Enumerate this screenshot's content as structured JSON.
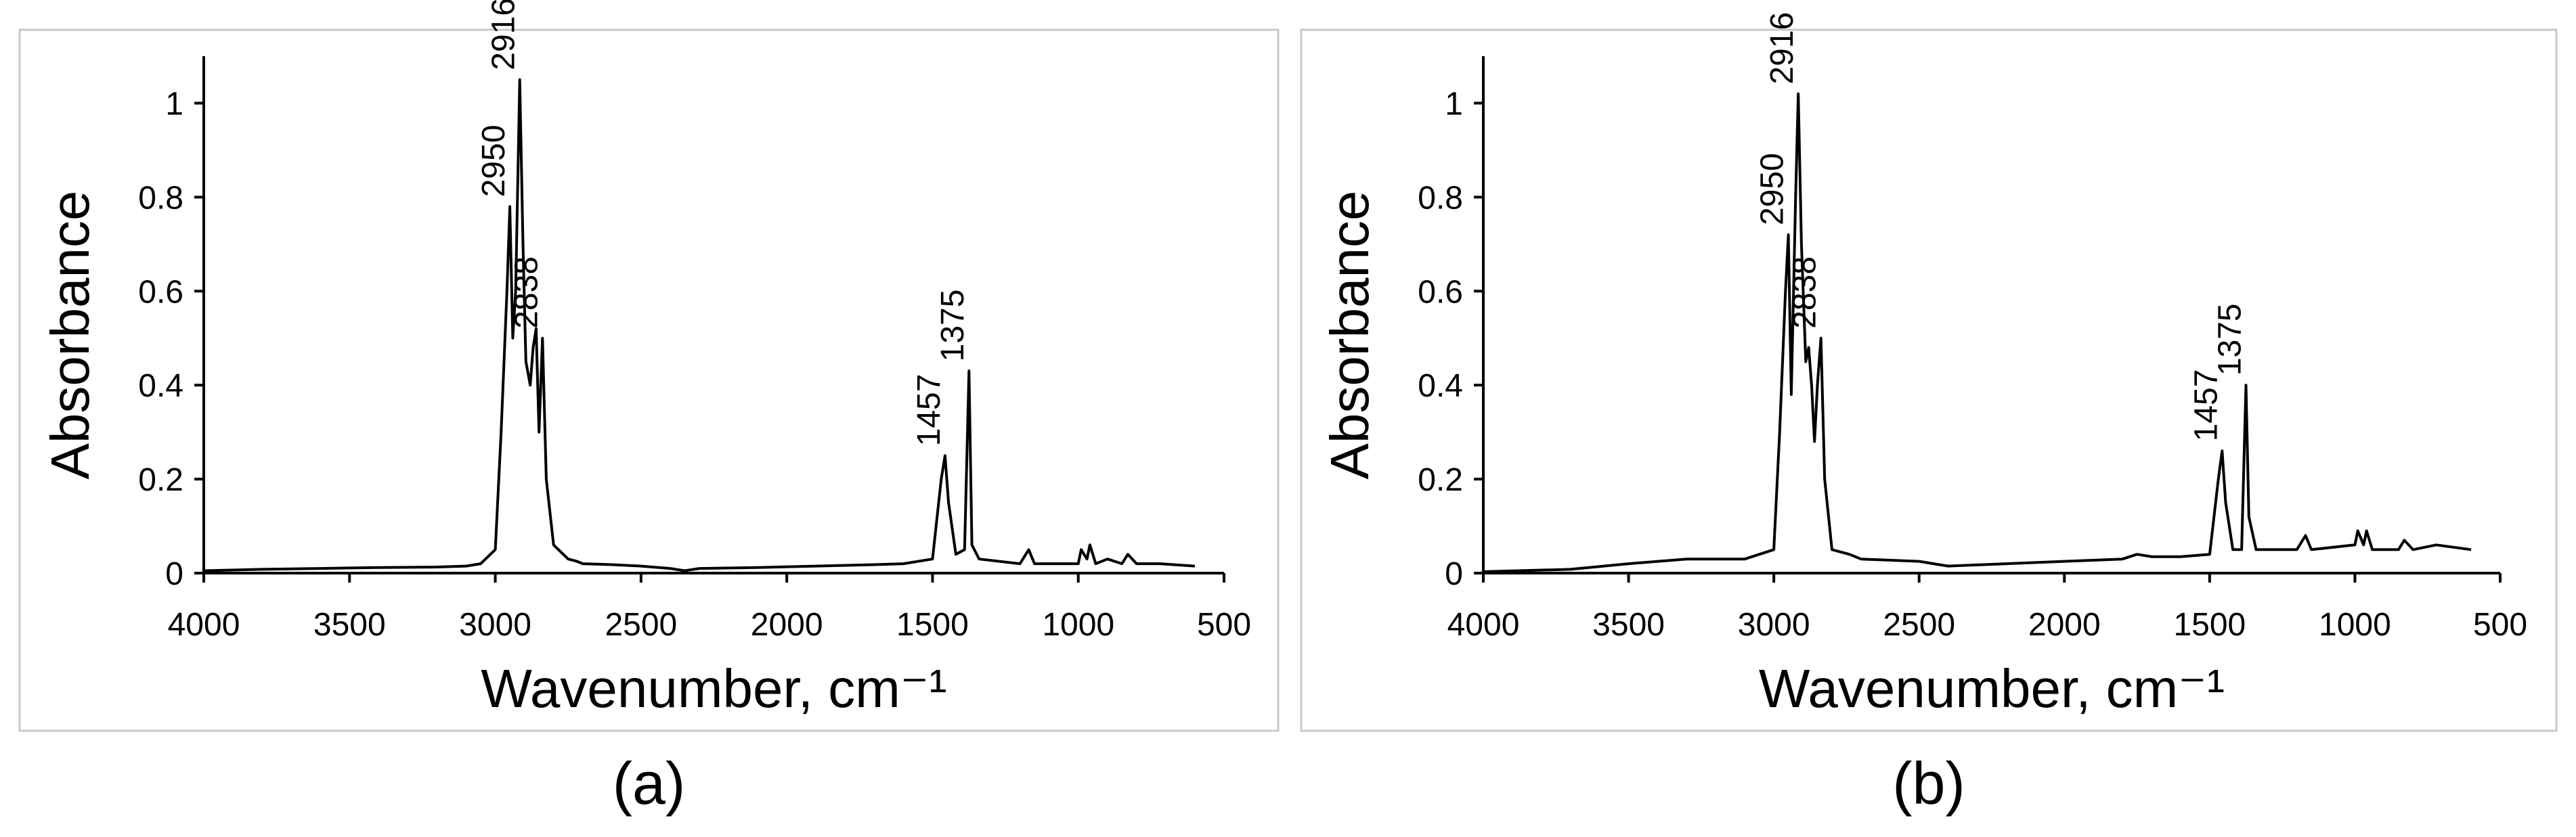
{
  "chart_data": [
    {
      "type": "line",
      "label": "(a)",
      "x_label": "Wavenumber, cm⁻¹",
      "y_label": "Absorbance",
      "xlim": [
        4000,
        500
      ],
      "xticks": [
        4000,
        3500,
        3000,
        2500,
        2000,
        1500,
        1000,
        500
      ],
      "ylim": [
        0,
        1.1
      ],
      "yticks": [
        0,
        0.2,
        0.4,
        0.6,
        0.8,
        1
      ],
      "grid": false,
      "color": "#000000",
      "x": [
        4000,
        3800,
        3600,
        3400,
        3200,
        3100,
        3050,
        3000,
        2980,
        2960,
        2950,
        2940,
        2930,
        2916,
        2905,
        2895,
        2880,
        2870,
        2860,
        2850,
        2838,
        2825,
        2800,
        2750,
        2720,
        2700,
        2600,
        2500,
        2400,
        2350,
        2300,
        2100,
        1900,
        1700,
        1600,
        1500,
        1470,
        1457,
        1445,
        1420,
        1390,
        1375,
        1365,
        1340,
        1200,
        1170,
        1150,
        1000,
        990,
        970,
        960,
        940,
        900,
        850,
        830,
        800,
        720,
        600
      ],
      "values": [
        0.005,
        0.008,
        0.01,
        0.012,
        0.013,
        0.015,
        0.02,
        0.05,
        0.3,
        0.6,
        0.78,
        0.5,
        0.6,
        1.05,
        0.7,
        0.45,
        0.4,
        0.48,
        0.52,
        0.3,
        0.5,
        0.2,
        0.06,
        0.03,
        0.025,
        0.02,
        0.018,
        0.015,
        0.01,
        0.005,
        0.01,
        0.012,
        0.015,
        0.018,
        0.02,
        0.03,
        0.2,
        0.25,
        0.15,
        0.04,
        0.05,
        0.43,
        0.06,
        0.03,
        0.02,
        0.05,
        0.02,
        0.02,
        0.05,
        0.03,
        0.06,
        0.02,
        0.03,
        0.02,
        0.04,
        0.02,
        0.02,
        0.015
      ],
      "annotations": [
        "2950",
        "2916",
        "2838",
        "1457",
        "1375"
      ]
    },
    {
      "type": "line",
      "label": "(b)",
      "x_label": "Wavenumber, cm⁻¹",
      "y_label": "Absorbance",
      "xlim": [
        4000,
        500
      ],
      "xticks": [
        4000,
        3500,
        3000,
        2500,
        2000,
        1500,
        1000,
        500
      ],
      "ylim": [
        0,
        1.1
      ],
      "yticks": [
        0,
        0.2,
        0.4,
        0.6,
        0.8,
        1
      ],
      "grid": false,
      "color": "#000000",
      "x": [
        4000,
        3700,
        3500,
        3300,
        3100,
        3000,
        2980,
        2960,
        2950,
        2940,
        2925,
        2916,
        2905,
        2890,
        2880,
        2870,
        2860,
        2850,
        2838,
        2825,
        2800,
        2740,
        2700,
        2500,
        2400,
        2200,
        2000,
        1800,
        1750,
        1700,
        1600,
        1500,
        1470,
        1457,
        1445,
        1420,
        1390,
        1375,
        1365,
        1340,
        1200,
        1170,
        1150,
        1000,
        990,
        970,
        960,
        940,
        850,
        830,
        800,
        720,
        600
      ],
      "values": [
        0.003,
        0.008,
        0.02,
        0.03,
        0.03,
        0.05,
        0.3,
        0.6,
        0.72,
        0.38,
        0.8,
        1.02,
        0.7,
        0.45,
        0.48,
        0.4,
        0.28,
        0.4,
        0.5,
        0.2,
        0.05,
        0.04,
        0.03,
        0.025,
        0.015,
        0.02,
        0.025,
        0.03,
        0.04,
        0.035,
        0.035,
        0.04,
        0.2,
        0.26,
        0.15,
        0.05,
        0.05,
        0.4,
        0.12,
        0.05,
        0.05,
        0.08,
        0.05,
        0.06,
        0.09,
        0.06,
        0.09,
        0.05,
        0.05,
        0.07,
        0.05,
        0.06,
        0.05
      ],
      "annotations": [
        "2950",
        "2916",
        "2838",
        "1457",
        "1375"
      ]
    }
  ]
}
